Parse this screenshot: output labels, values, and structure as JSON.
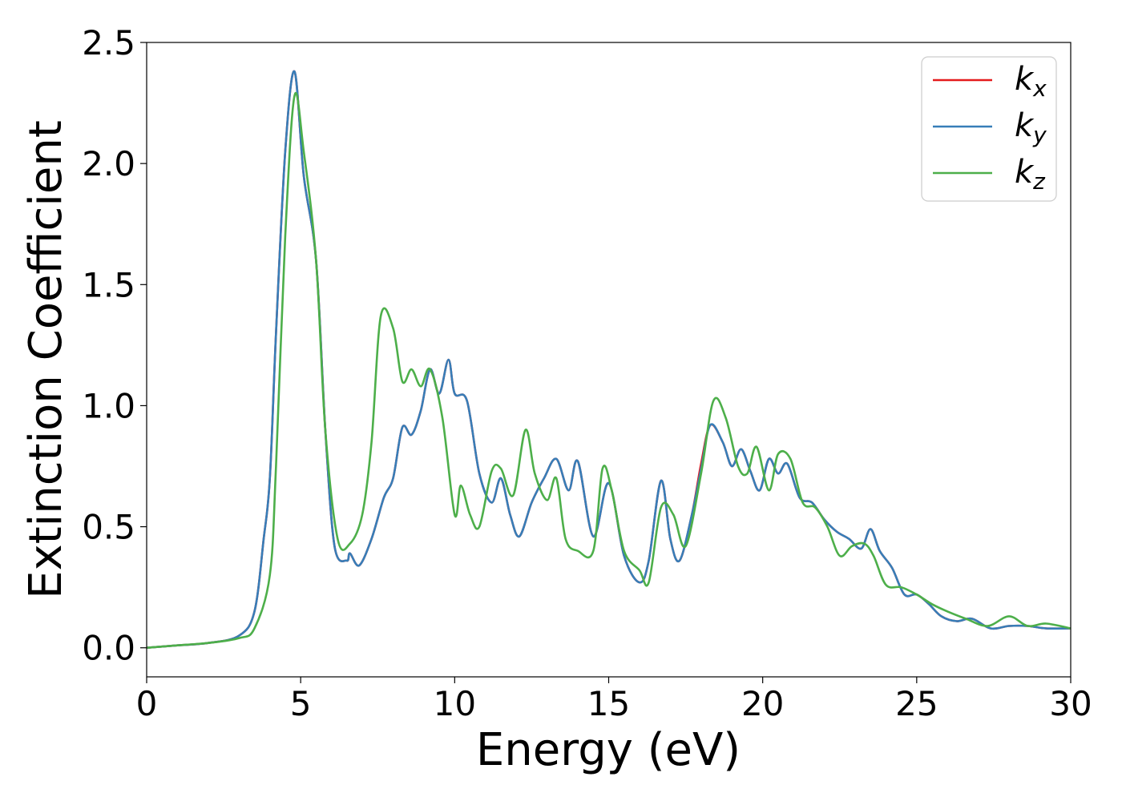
{
  "chart_data": {
    "type": "line",
    "xlabel": "Energy (eV)",
    "ylabel": "Extinction Coefficient",
    "xlim": [
      0,
      30
    ],
    "ylim": [
      -0.12,
      2.5
    ],
    "xticks": [
      0,
      5,
      10,
      15,
      20,
      25,
      30
    ],
    "xtick_labels": [
      "0",
      "5",
      "10",
      "15",
      "20",
      "25",
      "30"
    ],
    "yticks": [
      0.0,
      0.5,
      1.0,
      1.5,
      2.0,
      2.5
    ],
    "ytick_labels": [
      "0.0",
      "0.5",
      "1.0",
      "1.5",
      "2.0",
      "2.5"
    ],
    "grid": false,
    "legend_position": "top-right",
    "series": [
      {
        "name": "k",
        "sub": "x",
        "color": "#e41a1c",
        "x": [
          0,
          1,
          2,
          3,
          3.5,
          3.8,
          4.0,
          4.2,
          4.5,
          4.8,
          5.1,
          5.5,
          5.8,
          6.1,
          6.5,
          6.6,
          6.9,
          7.3,
          7.7,
          8.0,
          8.3,
          8.6,
          8.9,
          9.2,
          9.5,
          9.8,
          10.0,
          10.4,
          10.8,
          11.2,
          11.5,
          11.8,
          12.1,
          12.5,
          12.9,
          13.3,
          13.7,
          14.0,
          14.5,
          15.0,
          15.5,
          16.0,
          16.3,
          16.7,
          17.0,
          17.3,
          17.7,
          18.0,
          18.3,
          18.7,
          19.0,
          19.3,
          19.6,
          19.9,
          20.2,
          20.5,
          20.8,
          21.2,
          21.6,
          22.0,
          22.4,
          22.8,
          23.2,
          23.5,
          23.8,
          24.2,
          24.6,
          25.0,
          25.4,
          25.8,
          26.3,
          26.8,
          27.4,
          28.0,
          28.6,
          29.2,
          30.0
        ],
        "y": [
          0.0,
          0.01,
          0.02,
          0.05,
          0.15,
          0.45,
          0.7,
          1.3,
          2.05,
          2.38,
          1.95,
          1.6,
          0.9,
          0.42,
          0.36,
          0.39,
          0.34,
          0.45,
          0.62,
          0.7,
          0.91,
          0.88,
          0.98,
          1.15,
          1.05,
          1.19,
          1.05,
          1.02,
          0.72,
          0.6,
          0.7,
          0.55,
          0.46,
          0.6,
          0.7,
          0.78,
          0.65,
          0.77,
          0.46,
          0.68,
          0.38,
          0.27,
          0.36,
          0.69,
          0.45,
          0.36,
          0.55,
          0.76,
          0.92,
          0.85,
          0.75,
          0.82,
          0.73,
          0.65,
          0.78,
          0.72,
          0.76,
          0.62,
          0.6,
          0.53,
          0.48,
          0.45,
          0.41,
          0.49,
          0.4,
          0.33,
          0.22,
          0.22,
          0.18,
          0.13,
          0.11,
          0.12,
          0.08,
          0.09,
          0.09,
          0.08,
          0.08
        ]
      },
      {
        "name": "k",
        "sub": "y",
        "color": "#377eb8",
        "x": [
          0,
          1,
          2,
          3,
          3.5,
          3.8,
          4.0,
          4.2,
          4.5,
          4.8,
          5.1,
          5.5,
          5.8,
          6.1,
          6.5,
          6.6,
          6.9,
          7.3,
          7.7,
          8.0,
          8.3,
          8.6,
          8.9,
          9.2,
          9.5,
          9.8,
          10.0,
          10.4,
          10.8,
          11.2,
          11.5,
          11.8,
          12.1,
          12.5,
          12.9,
          13.3,
          13.7,
          14.0,
          14.5,
          15.0,
          15.5,
          16.0,
          16.3,
          16.7,
          17.0,
          17.3,
          17.7,
          18.0,
          18.3,
          18.7,
          19.0,
          19.3,
          19.6,
          19.9,
          20.2,
          20.5,
          20.8,
          21.2,
          21.6,
          22.0,
          22.4,
          22.8,
          23.2,
          23.5,
          23.8,
          24.2,
          24.6,
          25.0,
          25.4,
          25.8,
          26.3,
          26.8,
          27.4,
          28.0,
          28.6,
          29.2,
          30.0
        ],
        "y": [
          0.0,
          0.01,
          0.02,
          0.05,
          0.15,
          0.45,
          0.7,
          1.3,
          2.05,
          2.38,
          1.95,
          1.6,
          0.9,
          0.42,
          0.36,
          0.39,
          0.34,
          0.45,
          0.62,
          0.7,
          0.91,
          0.88,
          0.98,
          1.15,
          1.05,
          1.19,
          1.05,
          1.02,
          0.72,
          0.6,
          0.7,
          0.55,
          0.46,
          0.6,
          0.7,
          0.78,
          0.65,
          0.77,
          0.46,
          0.68,
          0.38,
          0.27,
          0.36,
          0.69,
          0.45,
          0.36,
          0.55,
          0.74,
          0.92,
          0.85,
          0.75,
          0.82,
          0.73,
          0.65,
          0.78,
          0.72,
          0.76,
          0.62,
          0.6,
          0.53,
          0.48,
          0.45,
          0.41,
          0.49,
          0.4,
          0.33,
          0.22,
          0.22,
          0.18,
          0.13,
          0.11,
          0.12,
          0.08,
          0.09,
          0.09,
          0.08,
          0.08
        ]
      },
      {
        "name": "k",
        "sub": "z",
        "color": "#4daf4a",
        "x": [
          0,
          1,
          2,
          3,
          3.5,
          4.0,
          4.2,
          4.5,
          4.8,
          5.1,
          5.5,
          5.8,
          6.2,
          6.6,
          7.0,
          7.3,
          7.6,
          8.0,
          8.3,
          8.6,
          8.9,
          9.2,
          9.6,
          10.0,
          10.2,
          10.5,
          10.8,
          11.2,
          11.5,
          11.9,
          12.3,
          12.6,
          13.0,
          13.3,
          13.6,
          14.0,
          14.5,
          14.8,
          15.1,
          15.5,
          16.0,
          16.3,
          16.7,
          17.1,
          17.5,
          18.0,
          18.4,
          18.8,
          19.2,
          19.5,
          19.8,
          20.2,
          20.5,
          20.9,
          21.3,
          21.7,
          22.1,
          22.5,
          22.9,
          23.3,
          23.6,
          24.0,
          24.5,
          25.0,
          25.5,
          26.0,
          26.6,
          27.3,
          28.0,
          28.6,
          29.2,
          30.0
        ],
        "y": [
          0.0,
          0.01,
          0.02,
          0.04,
          0.08,
          0.3,
          0.75,
          1.7,
          2.28,
          2.05,
          1.6,
          0.9,
          0.45,
          0.43,
          0.55,
          0.85,
          1.37,
          1.32,
          1.1,
          1.15,
          1.08,
          1.15,
          0.95,
          0.55,
          0.67,
          0.55,
          0.5,
          0.73,
          0.74,
          0.63,
          0.9,
          0.72,
          0.61,
          0.7,
          0.45,
          0.4,
          0.4,
          0.74,
          0.65,
          0.4,
          0.32,
          0.27,
          0.58,
          0.55,
          0.42,
          0.72,
          1.02,
          0.95,
          0.75,
          0.72,
          0.83,
          0.65,
          0.8,
          0.78,
          0.6,
          0.58,
          0.5,
          0.38,
          0.42,
          0.43,
          0.38,
          0.26,
          0.25,
          0.22,
          0.18,
          0.15,
          0.12,
          0.09,
          0.13,
          0.09,
          0.1,
          0.08
        ]
      }
    ]
  }
}
